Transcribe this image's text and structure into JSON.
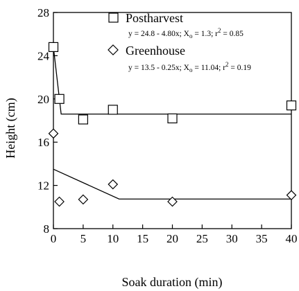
{
  "chart_data": {
    "type": "scatter",
    "xlabel": "Soak duration (min)",
    "ylabel": "Height (cm)",
    "xlim": [
      0,
      40
    ],
    "ylim": [
      8,
      28
    ],
    "x_ticks": [
      0,
      5,
      10,
      15,
      20,
      25,
      30,
      35,
      40
    ],
    "y_ticks": [
      8,
      12,
      16,
      20,
      24,
      28
    ],
    "grid": false,
    "legend_position": "top-right",
    "series": [
      {
        "name": "Postharvest",
        "marker": "square",
        "equation": "y = 24.8 - 4.80x; X",
        "eq_sub": "o",
        "eq_rest": " = 1.3; r",
        "eq_sup": "2",
        "eq_end": " = 0.85",
        "x": [
          0,
          1,
          5,
          10,
          20,
          40
        ],
        "y": [
          24.8,
          20.0,
          18.1,
          19.0,
          18.2,
          19.4
        ],
        "fit_line": {
          "x": [
            0,
            1.3,
            40
          ],
          "y": [
            24.8,
            18.6,
            18.6
          ]
        }
      },
      {
        "name": "Greenhouse",
        "marker": "diamond",
        "equation": "y = 13.5 - 0.25x; X",
        "eq_sub": "o",
        "eq_rest": " = 11.04; r",
        "eq_sup": "2",
        "eq_end": " = 0.19",
        "x": [
          0,
          1,
          5,
          10,
          20,
          40
        ],
        "y": [
          16.8,
          10.5,
          10.7,
          12.1,
          10.5,
          11.1
        ],
        "fit_line": {
          "x": [
            0,
            11.04,
            40
          ],
          "y": [
            13.5,
            10.74,
            10.74
          ]
        }
      }
    ],
    "colors": {
      "ink": "#000000",
      "background": "#ffffff"
    }
  }
}
